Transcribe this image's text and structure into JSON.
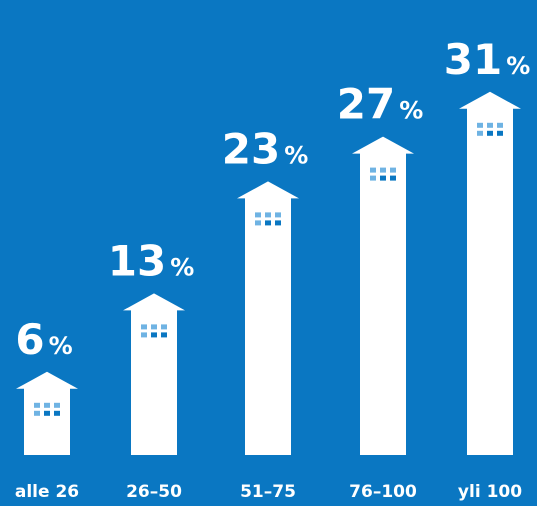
{
  "colors": {
    "background": "#0a77c2",
    "building": "#ffffff",
    "window_light": "#6fb3e3",
    "window_dark": "#0a77c2"
  },
  "chart_data": {
    "type": "bar",
    "categories": [
      "alle 26",
      "26–50",
      "51–75",
      "76–100",
      "yli 100"
    ],
    "values": [
      6,
      13,
      23,
      27,
      31
    ],
    "value_suffix": "%",
    "ylim": [
      0,
      31
    ],
    "xlabel": "",
    "ylabel": "",
    "title": "",
    "grid": false,
    "bar_style": "building-with-roof-and-windows"
  }
}
